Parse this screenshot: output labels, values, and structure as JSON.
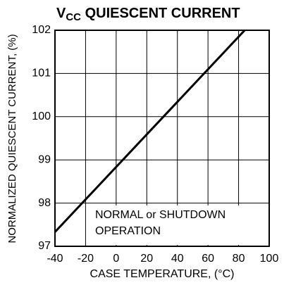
{
  "chart_data": {
    "type": "line",
    "title_parts": [
      "V",
      "CC",
      " QUIESCENT CURRENT"
    ],
    "xlabel": "CASE TEMPERATURE, (°C)",
    "ylabel": "NORMALIZED QUIESCENT CURRENT, (%)",
    "annotation": [
      "NORMAL or SHUTDOWN",
      "OPERATION"
    ],
    "x": [
      -40,
      84
    ],
    "series": [
      {
        "color": "#000000",
        "values": [
          97.33,
          102
        ]
      }
    ],
    "xlim": [
      -40,
      100
    ],
    "xticks": [
      -40,
      -20,
      0,
      20,
      40,
      60,
      80,
      100
    ],
    "ylim": [
      97,
      102
    ],
    "yticks": [
      97,
      98,
      99,
      100,
      101,
      102
    ],
    "grid": true
  }
}
